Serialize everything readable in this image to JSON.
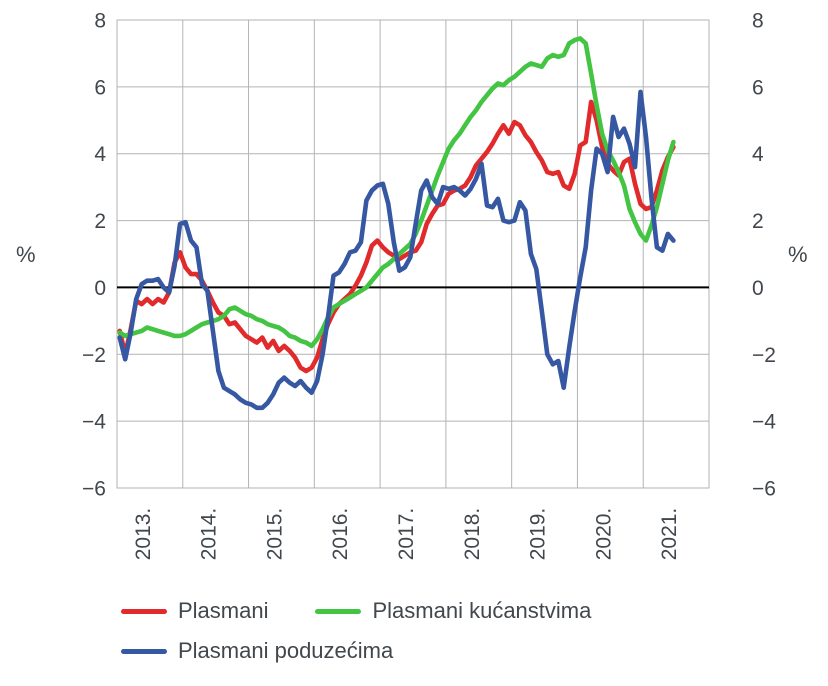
{
  "chart_data": {
    "type": "line",
    "title": "",
    "ylabel_left": "%",
    "ylabel_right": "%",
    "ylim": [
      -6,
      8
    ],
    "yticks": [
      8,
      6,
      4,
      2,
      0,
      -2,
      -4,
      -6
    ],
    "x_year_labels": [
      "2013.",
      "2014.",
      "2015.",
      "2016.",
      "2017.",
      "2018.",
      "2019.",
      "2020.",
      "2021."
    ],
    "x_start": "2013-01",
    "x_end": "2021-06",
    "grid": true,
    "zero_line_color": "#000000",
    "grid_color": "#b3b3b3",
    "legend_position": "bottom-left",
    "series": [
      {
        "name": "Plasmani",
        "color": "#e12a2b",
        "values": [
          -1.3,
          -2.0,
          -1.25,
          -0.4,
          -0.5,
          -0.35,
          -0.5,
          -0.35,
          -0.45,
          -0.15,
          0.75,
          1.05,
          0.6,
          0.4,
          0.4,
          0.2,
          -0.1,
          -0.45,
          -0.75,
          -0.85,
          -1.1,
          -1.05,
          -1.25,
          -1.45,
          -1.55,
          -1.65,
          -1.5,
          -1.8,
          -1.6,
          -1.9,
          -1.75,
          -1.9,
          -2.1,
          -2.4,
          -2.5,
          -2.4,
          -2.1,
          -1.55,
          -1.1,
          -0.75,
          -0.5,
          -0.35,
          -0.2,
          0.05,
          0.35,
          0.75,
          1.25,
          1.4,
          1.2,
          1.05,
          0.95,
          0.85,
          0.95,
          1.05,
          1.1,
          1.35,
          1.9,
          2.2,
          2.45,
          2.5,
          2.8,
          2.9,
          2.95,
          3.05,
          3.3,
          3.65,
          3.85,
          4.05,
          4.3,
          4.6,
          4.85,
          4.6,
          4.95,
          4.85,
          4.55,
          4.35,
          4.05,
          3.8,
          3.45,
          3.4,
          3.45,
          3.05,
          2.95,
          3.4,
          4.25,
          4.35,
          5.55,
          5.0,
          4.2,
          3.7,
          3.5,
          3.35,
          3.75,
          3.85,
          3.1,
          2.5,
          2.35,
          2.4,
          2.9,
          3.5,
          3.9,
          4.2
        ]
      },
      {
        "name": "Plasmani kućanstvima",
        "color": "#43c443",
        "values": [
          -1.35,
          -1.45,
          -1.4,
          -1.35,
          -1.3,
          -1.2,
          -1.25,
          -1.3,
          -1.35,
          -1.4,
          -1.45,
          -1.45,
          -1.4,
          -1.3,
          -1.2,
          -1.1,
          -1.05,
          -1.0,
          -0.95,
          -0.85,
          -0.65,
          -0.6,
          -0.7,
          -0.8,
          -0.85,
          -0.95,
          -1.0,
          -1.1,
          -1.15,
          -1.2,
          -1.3,
          -1.45,
          -1.5,
          -1.6,
          -1.65,
          -1.75,
          -1.55,
          -1.25,
          -0.9,
          -0.6,
          -0.5,
          -0.4,
          -0.3,
          -0.2,
          -0.1,
          0.0,
          0.2,
          0.4,
          0.6,
          0.7,
          0.85,
          1.0,
          1.15,
          1.3,
          1.6,
          2.0,
          2.45,
          2.9,
          3.35,
          3.75,
          4.15,
          4.4,
          4.6,
          4.85,
          5.1,
          5.3,
          5.55,
          5.75,
          5.95,
          6.1,
          6.05,
          6.2,
          6.3,
          6.45,
          6.6,
          6.7,
          6.65,
          6.6,
          6.85,
          6.95,
          6.9,
          6.95,
          7.3,
          7.4,
          7.45,
          7.3,
          6.4,
          5.45,
          4.6,
          4.1,
          3.8,
          3.45,
          3.05,
          2.35,
          1.95,
          1.6,
          1.4,
          1.85,
          2.4,
          3.1,
          3.8,
          4.35
        ]
      },
      {
        "name": "Plasmani poduzećima",
        "color": "#3658a2",
        "values": [
          -1.5,
          -2.15,
          -1.35,
          -0.35,
          0.1,
          0.2,
          0.2,
          0.25,
          0.0,
          -0.15,
          0.65,
          1.9,
          1.95,
          1.4,
          1.2,
          0.1,
          -0.1,
          -1.3,
          -2.5,
          -3.0,
          -3.1,
          -3.2,
          -3.35,
          -3.45,
          -3.5,
          -3.6,
          -3.6,
          -3.45,
          -3.2,
          -2.85,
          -2.7,
          -2.85,
          -2.95,
          -2.8,
          -3.0,
          -3.15,
          -2.8,
          -2.0,
          -0.9,
          0.35,
          0.45,
          0.7,
          1.05,
          1.1,
          1.35,
          2.6,
          2.9,
          3.05,
          3.1,
          2.5,
          1.35,
          0.5,
          0.6,
          0.9,
          1.9,
          2.9,
          3.2,
          2.7,
          2.5,
          3.0,
          2.95,
          3.0,
          2.9,
          2.75,
          2.95,
          3.25,
          3.7,
          2.45,
          2.4,
          2.65,
          2.0,
          1.95,
          2.0,
          2.55,
          2.3,
          1.0,
          0.55,
          -0.7,
          -2.0,
          -2.3,
          -2.2,
          -3.0,
          -1.8,
          -0.7,
          0.3,
          1.2,
          2.9,
          4.15,
          4.0,
          3.45,
          5.1,
          4.5,
          4.75,
          4.3,
          3.6,
          5.85,
          4.5,
          2.7,
          1.2,
          1.1,
          1.6,
          1.4
        ]
      }
    ]
  },
  "legend": {
    "row1": [
      "Plasmani",
      "Plasmani kućanstvima"
    ],
    "row2": [
      "Plasmani poduzećima"
    ]
  }
}
